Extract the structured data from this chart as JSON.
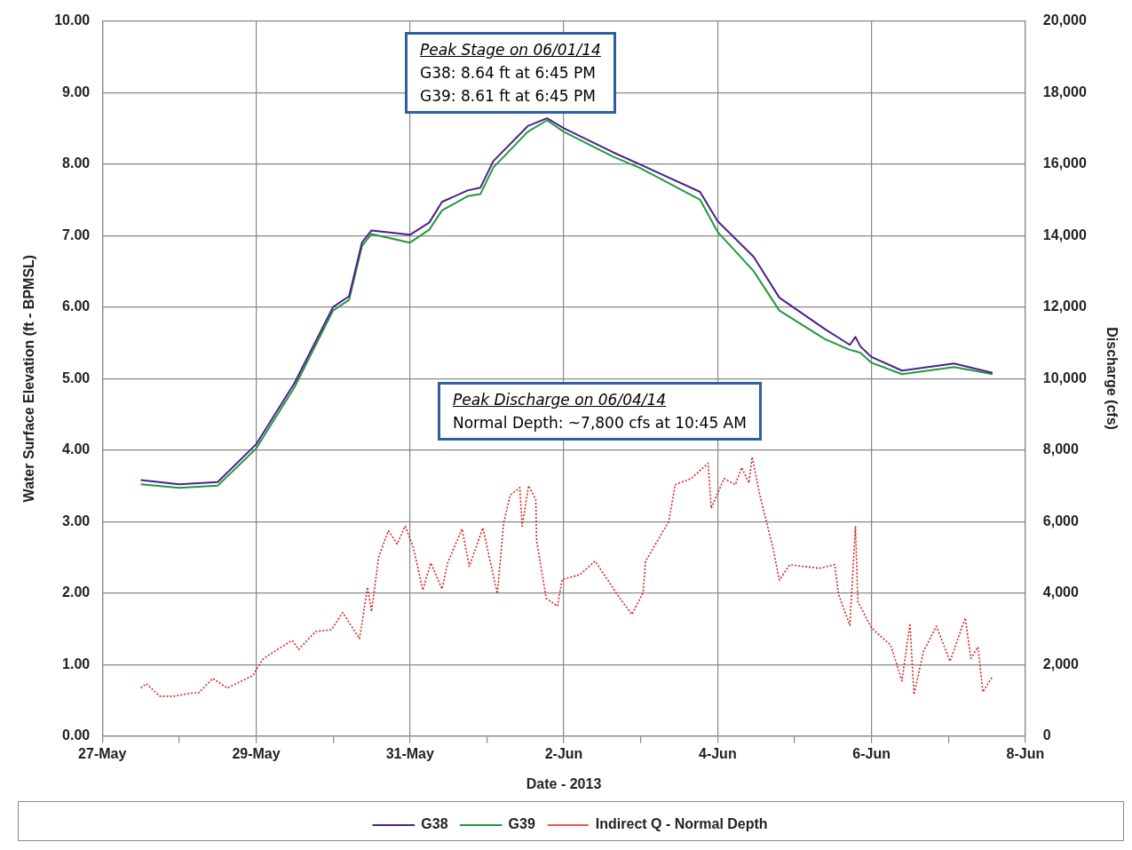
{
  "chart_data": {
    "type": "line",
    "xlabel": "Date - 2013",
    "ylabel": "Water Surface Elevation (ft - BPMSL)",
    "y2label": "Discharge (cfs)",
    "xlim": [
      "2013-05-27",
      "2013-06-08"
    ],
    "xticks": [
      {
        "value": "2013-05-27",
        "label": "27-May"
      },
      {
        "value": "2013-05-28",
        "label": null
      },
      {
        "value": "2013-05-29",
        "label": "29-May"
      },
      {
        "value": "2013-05-30",
        "label": null
      },
      {
        "value": "2013-05-31",
        "label": "31-May"
      },
      {
        "value": "2013-06-01",
        "label": null
      },
      {
        "value": "2013-06-02",
        "label": "2-Jun"
      },
      {
        "value": "2013-06-03",
        "label": null
      },
      {
        "value": "2013-06-04",
        "label": "4-Jun"
      },
      {
        "value": "2013-06-05",
        "label": null
      },
      {
        "value": "2013-06-06",
        "label": "6-Jun"
      },
      {
        "value": "2013-06-07",
        "label": null
      },
      {
        "value": "2013-06-08",
        "label": "8-Jun"
      }
    ],
    "ylim": [
      0,
      10
    ],
    "yticks": [
      {
        "value": 0,
        "label": "0.00"
      },
      {
        "value": 1,
        "label": "1.00"
      },
      {
        "value": 2,
        "label": "2.00"
      },
      {
        "value": 3,
        "label": "3.00"
      },
      {
        "value": 4,
        "label": "4.00"
      },
      {
        "value": 5,
        "label": "5.00"
      },
      {
        "value": 6,
        "label": "6.00"
      },
      {
        "value": 7,
        "label": "7.00"
      },
      {
        "value": 8,
        "label": "8.00"
      },
      {
        "value": 9,
        "label": "9.00"
      },
      {
        "value": 10,
        "label": "10.00"
      }
    ],
    "y2lim": [
      0,
      20000
    ],
    "y2ticks": [
      0,
      {
        "value": 2000,
        "label": "2,000"
      },
      {
        "value": 4000,
        "label": "4,000"
      },
      {
        "value": 6000,
        "label": "6,000"
      },
      {
        "value": 8000,
        "label": "8,000"
      },
      {
        "value": 10000,
        "label": "10,000"
      },
      {
        "value": 12000,
        "label": "12,000"
      },
      {
        "value": 14000,
        "label": "14,000"
      },
      {
        "value": 16000,
        "label": "16,000"
      },
      {
        "value": 18000,
        "label": "18,000"
      },
      {
        "value": 20000,
        "label": "20,000"
      }
    ],
    "grid": true,
    "legend": "bottom",
    "marker": "none",
    "annotations": [
      "Peak Stage on 06/01/14\nG38: 8.64 ft at 6:45 PM\nG39: 8.61 ft at 6:45 PM",
      "Peak Discharge on 06/04/14\nNormal Depth: ~7,800 cfs at 10:45 AM"
    ],
    "series": [
      {
        "name": "G38",
        "color": "#4b1f8c",
        "line_style": "solid",
        "x": [
          "2013-05-27T12:00",
          "2013-05-28T00:00",
          "2013-05-28T12:00",
          "2013-05-29T00:00",
          "2013-05-29T12:00",
          "2013-05-30T00:00",
          "2013-05-30T05:00",
          "2013-05-30T09:00",
          "2013-05-30T12:00",
          "2013-05-31T00:00",
          "2013-05-31T06:00",
          "2013-05-31T10:00",
          "2013-05-31T18:00",
          "2013-05-31T22:00",
          "2013-06-01T02:00",
          "2013-06-01T12:45",
          "2013-06-01T18:45",
          "2013-06-02T00:00",
          "2013-06-02T15:30",
          "2013-06-02T23:30",
          "2013-06-03T18:30",
          "2013-06-04T00:00",
          "2013-06-04T11:15",
          "2013-06-04T19:15",
          "2013-06-05T09:30",
          "2013-06-05T17:15",
          "2013-06-05T19:00",
          "2013-06-05T20:30",
          "2013-06-06T00:00",
          "2013-06-06T09:30",
          "2013-06-07T01:45",
          "2013-06-07T13:45"
        ],
        "values": [
          3.58,
          3.52,
          3.55,
          4.08,
          4.94,
          6.0,
          6.15,
          6.9,
          7.07,
          7.01,
          7.18,
          7.47,
          7.63,
          7.67,
          8.04,
          8.53,
          8.64,
          8.5,
          8.16,
          8.0,
          7.61,
          7.2,
          6.7,
          6.13,
          5.69,
          5.47,
          5.58,
          5.45,
          5.3,
          5.11,
          5.21,
          5.08
        ]
      },
      {
        "name": "G39",
        "color": "#1f9a3c",
        "line_style": "solid",
        "x": [
          "2013-05-27T12:00",
          "2013-05-28T00:00",
          "2013-05-28T12:00",
          "2013-05-29T00:00",
          "2013-05-29T12:00",
          "2013-05-30T00:00",
          "2013-05-30T05:00",
          "2013-05-30T09:00",
          "2013-05-30T12:00",
          "2013-05-31T00:00",
          "2013-05-31T06:00",
          "2013-05-31T10:00",
          "2013-05-31T18:00",
          "2013-05-31T22:00",
          "2013-06-01T02:00",
          "2013-06-01T12:45",
          "2013-06-01T18:45",
          "2013-06-02T00:00",
          "2013-06-02T15:30",
          "2013-06-02T23:30",
          "2013-06-03T18:30",
          "2013-06-04T00:00",
          "2013-06-04T11:15",
          "2013-06-04T19:15",
          "2013-06-05T09:30",
          "2013-06-05T17:15",
          "2013-06-05T19:00",
          "2013-06-05T20:30",
          "2013-06-06T00:00",
          "2013-06-06T09:30",
          "2013-06-07T01:45",
          "2013-06-07T13:45"
        ],
        "values": [
          3.52,
          3.47,
          3.5,
          4.02,
          4.88,
          5.95,
          6.1,
          6.85,
          7.02,
          6.9,
          7.08,
          7.35,
          7.55,
          7.58,
          7.95,
          8.45,
          8.61,
          8.45,
          8.1,
          7.95,
          7.5,
          7.05,
          6.5,
          5.95,
          5.55,
          5.4,
          5.38,
          5.36,
          5.22,
          5.06,
          5.16,
          5.06
        ]
      },
      {
        "name": "Indirect Q - Normal Depth",
        "color": "#e02020",
        "line_style": "dotted",
        "axis": "y2",
        "x": [
          "2013-05-27T12:00",
          "2013-05-27T13:45",
          "2013-05-27T18:00",
          "2013-05-27T22:15",
          "2013-05-28T04:00",
          "2013-05-28T06:00",
          "2013-05-28T10:30",
          "2013-05-28T15:00",
          "2013-05-28T23:00",
          "2013-05-29T02:00",
          "2013-05-29T07:00",
          "2013-05-29T11:15",
          "2013-05-29T13:15",
          "2013-05-29T18:30",
          "2013-05-29T23:30",
          "2013-05-30T03:00",
          "2013-05-30T06:15",
          "2013-05-30T08:15",
          "2013-05-30T10:45",
          "2013-05-30T12:00",
          "2013-05-30T14:15",
          "2013-05-30T17:15",
          "2013-05-30T20:00",
          "2013-05-30T22:30",
          "2013-05-31T01:00",
          "2013-05-31T04:00",
          "2013-05-31T06:30",
          "2013-05-31T10:00",
          "2013-05-31T11:45",
          "2013-05-31T16:15",
          "2013-05-31T18:30",
          "2013-05-31T22:45",
          "2013-06-01T03:15",
          "2013-06-01T05:15",
          "2013-06-01T07:15",
          "2013-06-01T10:15",
          "2013-06-01T11:00",
          "2013-06-01T13:00",
          "2013-06-01T15:15",
          "2013-06-01T15:30",
          "2013-06-01T18:30",
          "2013-06-01T22:00",
          "2013-06-01T23:30",
          "2013-06-02T05:00",
          "2013-06-02T09:45",
          "2013-06-02T17:30",
          "2013-06-02T21:15",
          "2013-06-03T00:45",
          "2013-06-03T01:30",
          "2013-06-03T08:45",
          "2013-06-03T10:45",
          "2013-06-03T15:45",
          "2013-06-03T21:00",
          "2013-06-03T22:00",
          "2013-06-04T02:00",
          "2013-06-04T05:30",
          "2013-06-04T07:30",
          "2013-06-04T09:45",
          "2013-06-04T10:45",
          "2013-06-04T13:00",
          "2013-06-04T17:15",
          "2013-06-04T19:15",
          "2013-06-04T22:30",
          "2013-06-05T07:45",
          "2013-06-05T12:30",
          "2013-06-05T13:45",
          "2013-06-05T17:15",
          "2013-06-05T19:00",
          "2013-06-05T19:45",
          "2013-06-06T00:00",
          "2013-06-06T06:00",
          "2013-06-06T09:30",
          "2013-06-06T12:00",
          "2013-06-06T13:15",
          "2013-06-06T16:15",
          "2013-06-06T20:15",
          "2013-06-07T00:30",
          "2013-06-07T05:15",
          "2013-06-07T07:00",
          "2013-06-07T09:15",
          "2013-06-07T10:45",
          "2013-06-07T13:45"
        ],
        "values": [
          1340,
          1460,
          1110,
          1110,
          1200,
          1200,
          1610,
          1340,
          1690,
          2140,
          2440,
          2670,
          2420,
          2920,
          2970,
          3450,
          3000,
          2720,
          4160,
          3480,
          5010,
          5740,
          5370,
          5870,
          5290,
          4080,
          4840,
          4110,
          4840,
          5790,
          4740,
          5820,
          3980,
          5970,
          6730,
          6950,
          5870,
          7000,
          6620,
          5470,
          3850,
          3630,
          4380,
          4510,
          4890,
          3850,
          3400,
          4010,
          4890,
          6000,
          7030,
          7200,
          7630,
          6370,
          7200,
          7030,
          7510,
          7080,
          7800,
          6800,
          5260,
          4360,
          4790,
          4690,
          4790,
          3950,
          3100,
          5870,
          3750,
          3020,
          2540,
          1540,
          3150,
          1160,
          2370,
          3070,
          2090,
          3300,
          2170,
          2490,
          1230,
          1660
        ]
      }
    ]
  }
}
